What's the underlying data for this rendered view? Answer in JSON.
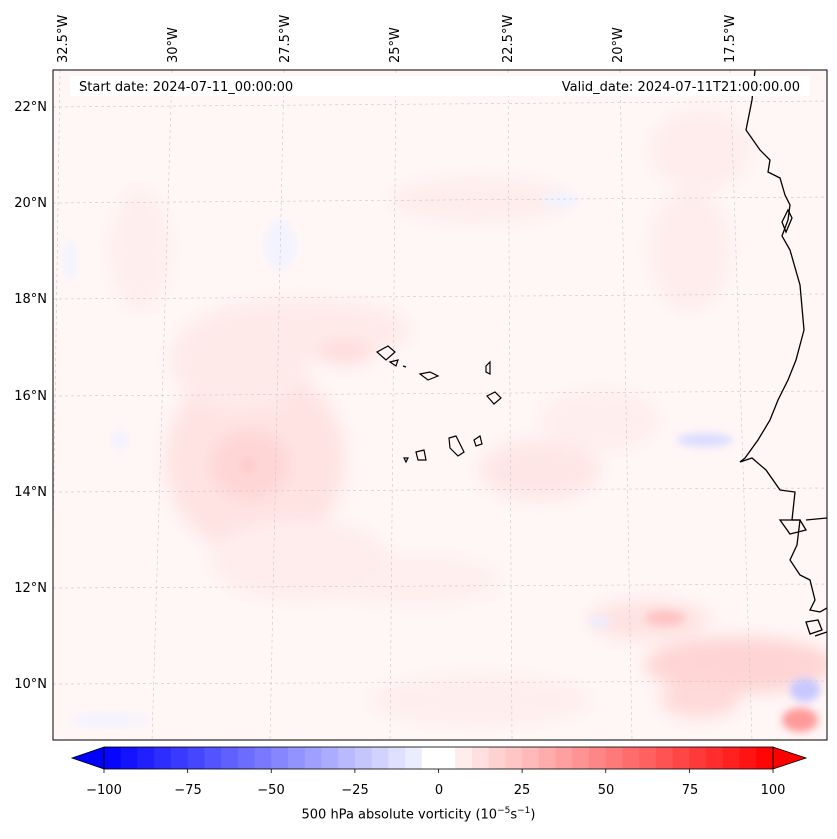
{
  "header": {
    "start_date": "Start date: 2024-07-11_00:00:00",
    "valid_date": "Valid_date: 2024-07-11T21:00:00.00"
  },
  "map": {
    "lon_labels": [
      "32.5°W",
      "30°W",
      "27.5°W",
      "25°W",
      "22.5°W",
      "20°W",
      "17.5°W"
    ],
    "lat_labels": [
      "22°N",
      "20°N",
      "18°N",
      "16°N",
      "14°N",
      "12°N",
      "10°N"
    ],
    "colors": {
      "land_outline": "#000000",
      "gridline": "#c8c8c8",
      "background_field": "#fff5f5"
    }
  },
  "colorbar": {
    "ticks": [
      "−100",
      "−75",
      "−50",
      "−25",
      "0",
      "25",
      "50",
      "75",
      "100"
    ],
    "min": -100,
    "max": 100,
    "label_main": "500 hPa absolute vorticity (10",
    "label_exp1": "−5",
    "label_mid": "s",
    "label_exp2": "−1",
    "label_end": ")",
    "colors": {
      "min": "#0000ff",
      "mid": "#ffffff",
      "max": "#ff0000"
    }
  }
}
